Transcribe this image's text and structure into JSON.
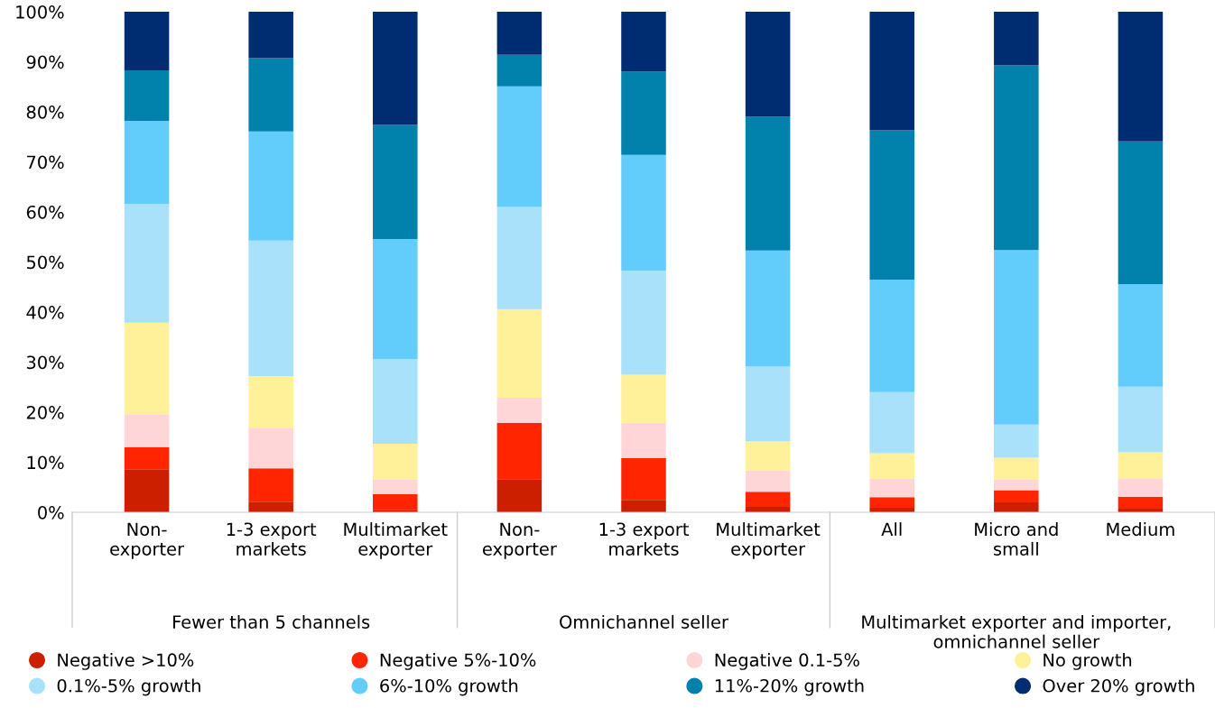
{
  "chart_data": {
    "type": "bar",
    "stacked": true,
    "categories": [
      "Non-\nexporter",
      "1-3 export\nmarkets",
      "Multimarket\nexporter",
      "Non-\nexporter",
      "1-3 export\nmarkets",
      "Multimarket\nexporter",
      "All",
      "Micro and\nsmall",
      "Medium"
    ],
    "series": [
      {
        "name": "Negative >10%",
        "color": "#cc1f00",
        "values": [
          8.6,
          2.1,
          0.5,
          6.6,
          2.5,
          1.1,
          0.9,
          2.0,
          0.7
        ]
      },
      {
        "name": "Negative 5%-10%",
        "color": "#ff2500",
        "values": [
          4.4,
          6.7,
          3.1,
          11.3,
          8.3,
          3.0,
          2.1,
          2.4,
          2.4
        ]
      },
      {
        "name": "Negative 0.1-5%",
        "color": "#ffd6d8",
        "values": [
          6.6,
          8.1,
          2.9,
          5.0,
          7.1,
          4.3,
          3.7,
          2.1,
          3.7
        ]
      },
      {
        "name": "No growth",
        "color": "#fff199",
        "values": [
          18.3,
          10.3,
          7.2,
          17.7,
          9.6,
          5.8,
          5.1,
          4.4,
          5.2
        ]
      },
      {
        "name": "0.1%-5% growth",
        "color": "#a9e1fb",
        "values": [
          23.7,
          27.1,
          16.9,
          20.4,
          20.8,
          14.9,
          12.2,
          6.6,
          13.1
        ]
      },
      {
        "name": "6%-10% growth",
        "color": "#62cdfa",
        "values": [
          16.6,
          21.8,
          24.0,
          24.1,
          23.1,
          23.2,
          22.5,
          34.9,
          20.5
        ]
      },
      {
        "name": "11%-20% growth",
        "color": "#0082ad",
        "values": [
          10.1,
          14.6,
          22.8,
          6.3,
          16.6,
          26.7,
          29.8,
          36.9,
          28.5
        ]
      },
      {
        "name": "Over 20% growth",
        "color": "#002d72",
        "values": [
          11.7,
          9.3,
          22.6,
          8.6,
          12.0,
          21.0,
          23.7,
          10.7,
          25.9
        ]
      }
    ],
    "ylim": [
      0,
      100
    ],
    "yticks": [
      {
        "value": 0,
        "label": "0%"
      },
      {
        "value": 10,
        "label": "10%"
      },
      {
        "value": 20,
        "label": "20%"
      },
      {
        "value": 30,
        "label": "30%"
      },
      {
        "value": 40,
        "label": "40%"
      },
      {
        "value": 50,
        "label": "50%"
      },
      {
        "value": 60,
        "label": "60%"
      },
      {
        "value": 70,
        "label": "70%"
      },
      {
        "value": 80,
        "label": "80%"
      },
      {
        "value": 90,
        "label": "90%"
      },
      {
        "value": 100,
        "label": "100%"
      }
    ],
    "annotations": [
      "Fewer than 5 channels",
      "Omnichannel seller",
      "Multimarket exporter and importer,\nomnichannel seller"
    ],
    "legend": "bottom",
    "marker": "circle",
    "grid": false
  }
}
